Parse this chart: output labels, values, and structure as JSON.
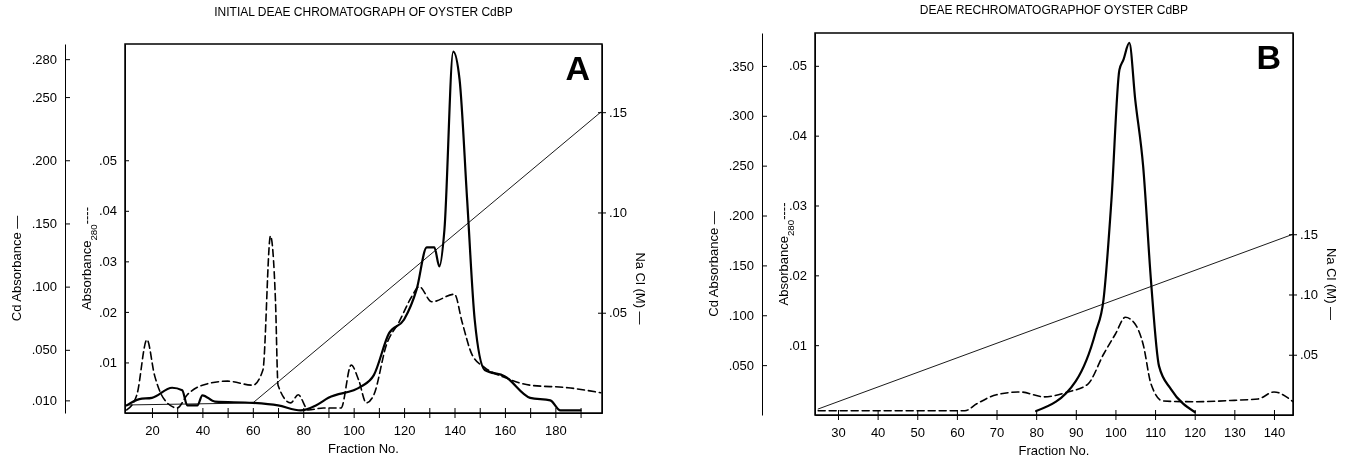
{
  "chart_data": [
    {
      "type": "line",
      "title": "INITIAL DEAE CHROMATOGRAPH OF OYSTER CdBP",
      "xlabel": "Fraction No.",
      "ylabel": "Cd Absorbance —",
      "y2label": "Absorbance$_{280}$----",
      "y3label": "Na Cl (M) —",
      "annotations": [
        "A"
      ],
      "xlim": [
        9.3,
        198.5
      ],
      "xticks": [
        20,
        {
          "value": 30,
          "label": null
        },
        40,
        {
          "value": 50,
          "label": null
        },
        60,
        {
          "value": 70,
          "label": null
        },
        80,
        {
          "value": 90,
          "label": null
        },
        100,
        {
          "value": 110,
          "label": null
        },
        120,
        {
          "value": 130,
          "label": null
        },
        140,
        {
          "value": 150,
          "label": null
        },
        160,
        {
          "value": 170,
          "label": null
        },
        180,
        {
          "value": 190,
          "label": null
        }
      ],
      "ylim": [
        0,
        0.292
      ],
      "yticks": [
        {
          "value": 0.01,
          "label": ".010"
        },
        {
          "value": 0.05,
          "label": ".050"
        },
        {
          "value": 0.1,
          "label": ".100"
        },
        {
          "value": 0.15,
          "label": ".150"
        },
        {
          "value": 0.2,
          "label": ".200"
        },
        {
          "value": 0.25,
          "label": ".250"
        },
        {
          "value": 0.28,
          "label": ".280"
        }
      ],
      "y2lim": [
        0,
        0.073
      ],
      "y2ticks": [
        {
          "value": 0.01,
          "label": ".01"
        },
        {
          "value": 0.02,
          "label": ".02"
        },
        {
          "value": 0.03,
          "label": ".03"
        },
        {
          "value": 0.04,
          "label": ".04"
        },
        {
          "value": 0.05,
          "label": ".05"
        }
      ],
      "y3lim": [
        0,
        0.184
      ],
      "y3ticks": [
        {
          "value": 0.05,
          "label": ".05"
        },
        {
          "value": 0.1,
          "label": ".10"
        },
        {
          "value": 0.15,
          "label": ".15"
        }
      ],
      "series": [
        {
          "color": "#000000",
          "axis": "y",
          "line_style": "solid",
          "x": [
            10,
            15,
            20,
            28,
            32,
            34,
            38,
            40,
            45,
            60,
            70,
            79,
            85,
            90,
            103,
            108,
            114,
            120,
            125,
            129,
            132,
            134,
            136,
            139.5,
            142,
            145,
            148,
            152,
            160,
            170,
            178,
            182,
            190
          ],
          "values": [
            0.006,
            0.011,
            0.012,
            0.02,
            0.018,
            0.006,
            0.006,
            0.014,
            0.009,
            0.008,
            0.006,
            0.002,
            0.006,
            0.012,
            0.021,
            0.03,
            0.063,
            0.074,
            0.098,
            0.131,
            0.131,
            0.116,
            0.145,
            0.286,
            0.264,
            0.169,
            0.074,
            0.034,
            0.029,
            0.012,
            0.01,
            0.002,
            0.002
          ]
        },
        {
          "color": "#000000",
          "axis": "y2",
          "line_style": "dashed",
          "x": [
            10,
            14,
            18,
            21,
            25,
            30,
            34,
            40,
            50,
            60,
            64,
            67,
            69,
            70,
            75,
            78,
            82,
            88,
            95,
            99,
            102,
            105,
            108,
            113,
            118,
            123,
            126,
            131,
            140,
            143,
            147,
            152,
            160,
            170,
            185,
            198
          ],
          "values": [
            0.0006,
            0.0036,
            0.0145,
            0.0075,
            0.0026,
            0.001,
            0.0036,
            0.0055,
            0.0063,
            0.0055,
            0.0085,
            0.035,
            0.022,
            0.0055,
            0.002,
            0.0036,
            0.0006,
            0.001,
            0.001,
            0.0095,
            0.0065,
            0.002,
            0.0036,
            0.0135,
            0.018,
            0.023,
            0.025,
            0.022,
            0.0235,
            0.018,
            0.0115,
            0.009,
            0.007,
            0.0055,
            0.005,
            0.004
          ]
        },
        {
          "color": "#000000",
          "axis": "y3",
          "line_style": "solid",
          "x": [
            10,
            60,
            198
          ],
          "values": [
            0.004,
            0.005,
            0.15
          ]
        }
      ]
    },
    {
      "type": "line",
      "title": "DEAE RECHROMATOGRAPHOF OYSTER CdBP",
      "xlabel": "Fraction No.",
      "ylabel": "Cd Absorbance —",
      "y2label": "Absorbance$_{280}$----",
      "y3label": "Na Cl (M) —",
      "annotations": [
        "B"
      ],
      "xlim": [
        24.2,
        144.8
      ],
      "xticks": [
        30,
        40,
        50,
        60,
        70,
        80,
        90,
        100,
        110,
        120,
        130,
        140
      ],
      "ylim": [
        0,
        0.383
      ],
      "yticks": [
        {
          "value": 0.05,
          "label": ".050"
        },
        {
          "value": 0.1,
          "label": ".100"
        },
        {
          "value": 0.15,
          "label": ".150"
        },
        {
          "value": 0.2,
          "label": ".200"
        },
        {
          "value": 0.25,
          "label": ".250"
        },
        {
          "value": 0.3,
          "label": ".300"
        },
        {
          "value": 0.35,
          "label": ".350"
        }
      ],
      "y2lim": [
        0,
        0.0547
      ],
      "y2ticks": [
        {
          "value": 0.01,
          "label": ".01"
        },
        {
          "value": 0.02,
          "label": ".02"
        },
        {
          "value": 0.03,
          "label": ".03"
        },
        {
          "value": 0.04,
          "label": ".04"
        },
        {
          "value": 0.05,
          "label": ".05"
        }
      ],
      "y3lim": [
        0,
        0.317
      ],
      "y3ticks": [
        {
          "value": 0.05,
          "label": ".05"
        },
        {
          "value": 0.1,
          "label": ".10"
        },
        {
          "value": 0.15,
          "label": ".15"
        }
      ],
      "series": [
        {
          "color": "#000000",
          "axis": "y",
          "line_style": "solid",
          "x": [
            80,
            90,
            95,
            97,
            99,
            101,
            102,
            103.5,
            105,
            107,
            109,
            111,
            114,
            120
          ],
          "values": [
            0.004,
            0.034,
            0.083,
            0.116,
            0.216,
            0.346,
            0.356,
            0.373,
            0.316,
            0.249,
            0.133,
            0.049,
            0.026,
            0.003
          ]
        },
        {
          "color": "#000000",
          "axis": "y2",
          "line_style": "dashed",
          "x": [
            25,
            40,
            62,
            65,
            70,
            76,
            82,
            88,
            93,
            97,
            100,
            102.5,
            105,
            107,
            109,
            112,
            120,
            130,
            136,
            140,
            144.8
          ],
          "values": [
            0.0006,
            0.0006,
            0.0006,
            0.0016,
            0.0029,
            0.0033,
            0.0026,
            0.0033,
            0.0044,
            0.0087,
            0.0116,
            0.014,
            0.013,
            0.0101,
            0.0044,
            0.002,
            0.0019,
            0.0021,
            0.0023,
            0.0033,
            0.0019
          ]
        },
        {
          "color": "#000000",
          "axis": "y3",
          "line_style": "solid",
          "x": [
            25,
            144.8
          ],
          "values": [
            0.005,
            0.15
          ]
        }
      ]
    }
  ]
}
